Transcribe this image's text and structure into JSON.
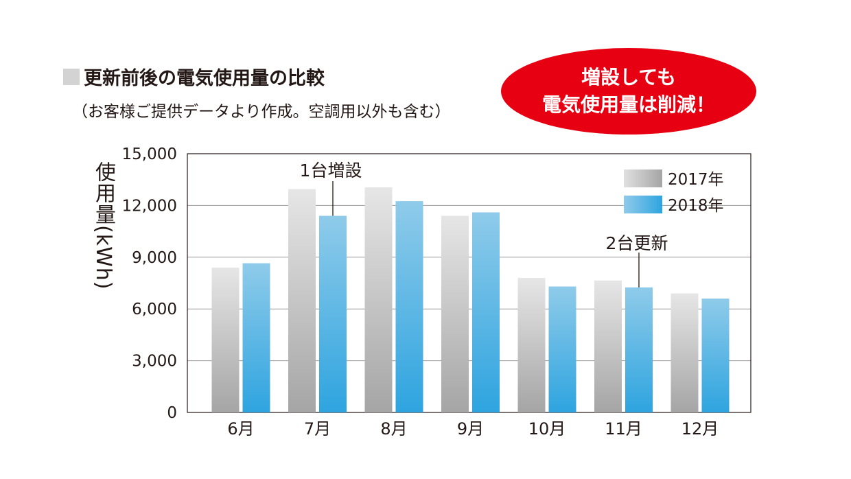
{
  "header": {
    "title": "更新前後の電気使用量の比較",
    "subtitle": "（お客様ご提供データより作成。空調用以外も含む）"
  },
  "callout": {
    "line1": "増設しても",
    "line2": "電気使用量は削減！",
    "color": "#e60012"
  },
  "chart_data": {
    "type": "bar",
    "ylabel": "使用量(kWh)",
    "xlabel": "",
    "ylim": [
      0,
      15000
    ],
    "yticks": [
      0,
      3000,
      6000,
      9000,
      12000,
      15000
    ],
    "ytick_labels": [
      "0",
      "3,000",
      "6,000",
      "9,000",
      "12,000",
      "15,000"
    ],
    "categories": [
      "6月",
      "7月",
      "8月",
      "9月",
      "10月",
      "11月",
      "12月"
    ],
    "series": [
      {
        "name": "2017年",
        "values": [
          8400,
          12950,
          13050,
          11400,
          7800,
          7650,
          6900
        ],
        "color": "#b5b5b5"
      },
      {
        "name": "2018年",
        "values": [
          8650,
          11400,
          12250,
          11600,
          7300,
          7250,
          6600
        ],
        "color": "#3aa9e0"
      }
    ],
    "grid": true,
    "legend": "top-right",
    "annotations": [
      {
        "text": "1台増設",
        "category": "7月",
        "series": "2018年"
      },
      {
        "text": "2台更新",
        "category": "11月",
        "series": "2018年"
      }
    ]
  }
}
